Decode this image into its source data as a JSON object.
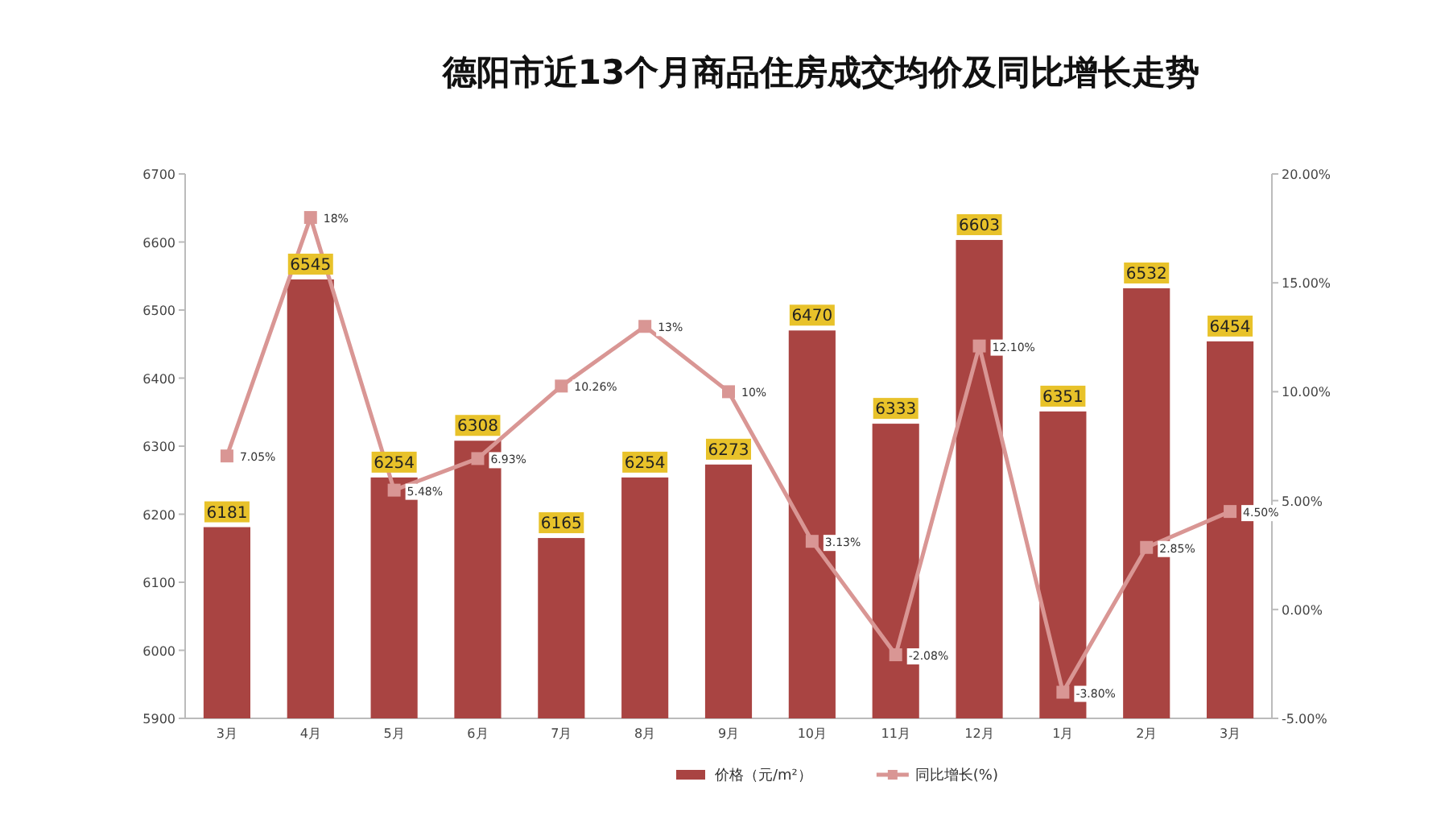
{
  "chart_data": {
    "type": "bar",
    "title": "德阳市近13个月商品住房成交均价及同比增长走势",
    "categories": [
      "3月",
      "4月",
      "5月",
      "6月",
      "7月",
      "8月",
      "9月",
      "10月",
      "11月",
      "12月",
      "1月",
      "2月",
      "3月"
    ],
    "series": [
      {
        "name": "价格（元/m²）",
        "color": "#a94442",
        "values": [
          6181,
          6545,
          6254,
          6308,
          6165,
          6254,
          6273,
          6470,
          6333,
          6603,
          6351,
          6532,
          6454
        ],
        "value_labels": [
          "6181",
          "6545",
          "6254",
          "6308",
          "6165",
          "6254",
          "6273",
          "6470",
          "6333",
          "6603",
          "6351",
          "6532",
          "6454"
        ]
      },
      {
        "name": "同比增长(%)",
        "type": "line",
        "axis": "y2",
        "color": "#d99694",
        "marker": "square",
        "values": [
          7.05,
          18,
          5.48,
          6.93,
          10.26,
          13,
          10,
          3.13,
          -2.08,
          12.1,
          -3.8,
          2.85,
          4.5
        ],
        "value_labels": [
          "7.05%",
          "18%",
          "5.48%",
          "6.93%",
          "10.26%",
          "13%",
          "10%",
          "3.13%",
          "-2.08%",
          "12.10%",
          "-3.80%",
          "2.85%",
          "4.50%"
        ]
      }
    ],
    "ylim": [
      5900,
      6700
    ],
    "yticks": [
      5900,
      6000,
      6100,
      6200,
      6300,
      6400,
      6500,
      6600,
      6700
    ],
    "y2lim": [
      -5,
      20
    ],
    "y2ticks": [
      {
        "value": -5,
        "label": "-5.00%"
      },
      {
        "value": 0,
        "label": "0.00%"
      },
      {
        "value": 5,
        "label": "5.00%"
      },
      {
        "value": 10,
        "label": "10.00%"
      },
      {
        "value": 15,
        "label": "15.00%"
      },
      {
        "value": 20,
        "label": "20.00%"
      }
    ],
    "grid": false,
    "legend": "bottom"
  }
}
